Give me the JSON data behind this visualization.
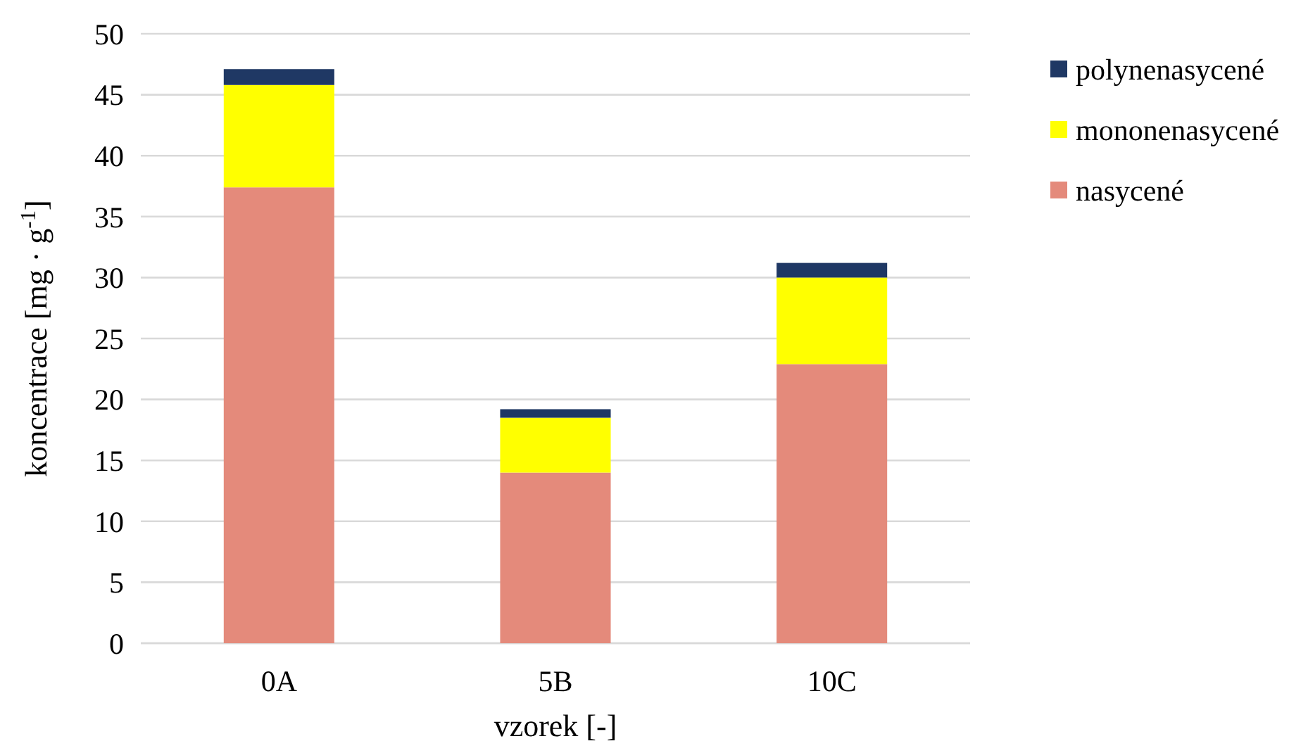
{
  "chart_data": {
    "type": "bar",
    "stacked": true,
    "xlabel": "vzorek [-]",
    "ylabel": "koncentrace [mg · g$^{-1}$]",
    "categories": [
      "0A",
      "5B",
      "10C"
    ],
    "series": [
      {
        "name": "nasycené",
        "color": "#e48a7b",
        "values": [
          37.4,
          14.0,
          22.9
        ]
      },
      {
        "name": "mononenasycené",
        "color": "#ffff00",
        "values": [
          8.4,
          4.5,
          7.1
        ]
      },
      {
        "name": "polynenasycené",
        "color": "#1f3864",
        "values": [
          1.3,
          0.7,
          1.2
        ]
      }
    ],
    "ylim": [
      0,
      50
    ],
    "yticks": [
      0,
      5,
      10,
      15,
      20,
      25,
      30,
      35,
      40,
      45,
      50
    ],
    "grid": "y",
    "legend": "right"
  }
}
